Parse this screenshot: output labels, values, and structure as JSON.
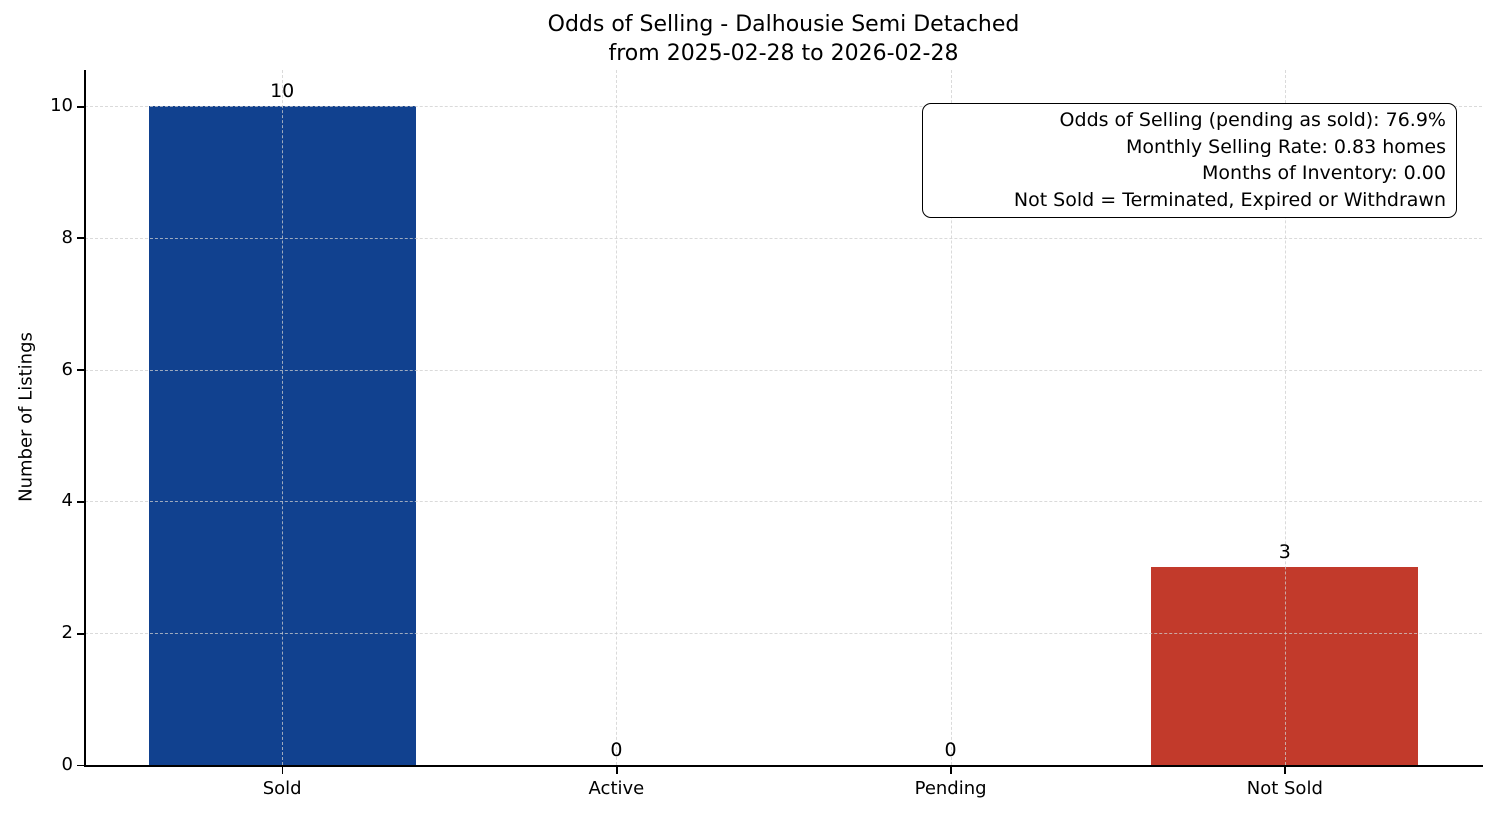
{
  "chart_data": {
    "type": "bar",
    "title": "Odds of Selling - Dalhousie Semi Detached",
    "subtitle": "from 2025-02-28 to 2026-02-28",
    "categories": [
      "Sold",
      "Active",
      "Pending",
      "Not Sold"
    ],
    "values": [
      10,
      0,
      0,
      3
    ],
    "value_labels": [
      "10",
      "0",
      "0",
      "3"
    ],
    "bar_colors": [
      "#11418F",
      null,
      null,
      "#C23A2B"
    ],
    "xlabel": "",
    "ylabel": "Number of Listings",
    "yticks": [
      0,
      2,
      4,
      6,
      8,
      10
    ],
    "ylim": [
      0,
      10.55
    ],
    "grid": true,
    "grid_style": "dashed",
    "legend": false,
    "annotation_lines": [
      "Odds of Selling (pending as sold): 76.9%",
      "Monthly Selling Rate: 0.83 homes",
      "Months of Inventory: 0.00",
      "Not Sold = Terminated, Expired or Withdrawn"
    ]
  },
  "colors": {
    "sold_bar": "#11418F",
    "not_sold_bar": "#C23A2B",
    "axis": "#000000",
    "gridline": "#CDCDCD",
    "background": "#FFFFFF",
    "text": "#000000"
  }
}
